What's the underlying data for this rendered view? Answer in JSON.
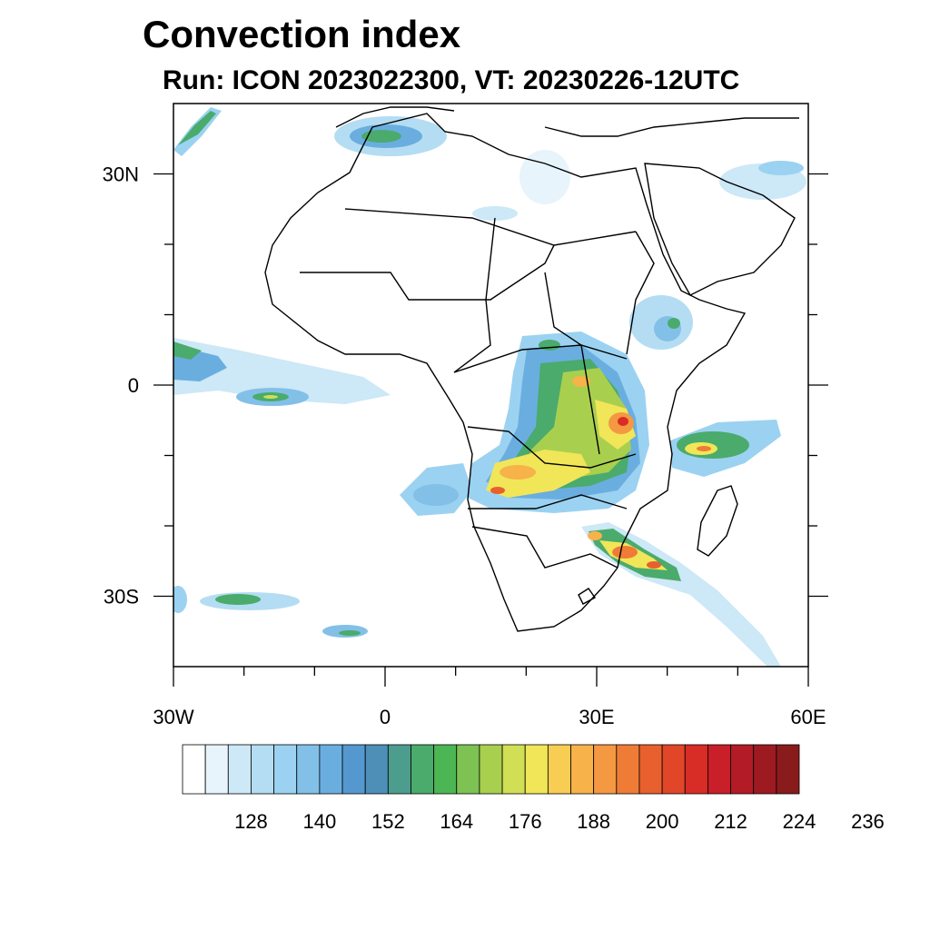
{
  "title": "Convection index",
  "subtitle": "Run: ICON 2023022300,  VT: 20230226-12UTC",
  "map": {
    "extent": {
      "lon_min": -30,
      "lon_max": 60,
      "lat_min": -40,
      "lat_max": 40
    },
    "x_ticks": [
      {
        "lon": -30,
        "label": "30W"
      },
      {
        "lon": 0,
        "label": "0"
      },
      {
        "lon": 30,
        "label": "30E"
      },
      {
        "lon": 60,
        "label": "60E"
      }
    ],
    "y_ticks": [
      {
        "lat": 30,
        "label": "30N"
      },
      {
        "lat": 0,
        "label": "0"
      },
      {
        "lat": -30,
        "label": "30S"
      }
    ],
    "minor_x_ticks": [
      -20,
      -10,
      10,
      20,
      40,
      50
    ],
    "minor_y_ticks": [
      20,
      10,
      -10,
      -20
    ]
  },
  "colorbar": {
    "colors": [
      "#ffffff",
      "#e8f4fb",
      "#cde8f6",
      "#b4ddf3",
      "#9bd2f1",
      "#83c0e8",
      "#6aaee0",
      "#5598cf",
      "#4e8fb8",
      "#4c9d8e",
      "#4aab6c",
      "#4db654",
      "#7ec253",
      "#a9cf4f",
      "#d1df55",
      "#f0e658",
      "#f8cd53",
      "#f7b24a",
      "#f49841",
      "#ef7c36",
      "#e8602d",
      "#e14628",
      "#d82c26",
      "#c81f28",
      "#b31b27",
      "#9e1a21",
      "#891b1c"
    ],
    "labels": [
      "128",
      "140",
      "152",
      "164",
      "176",
      "188",
      "200",
      "212",
      "224",
      "236"
    ]
  }
}
